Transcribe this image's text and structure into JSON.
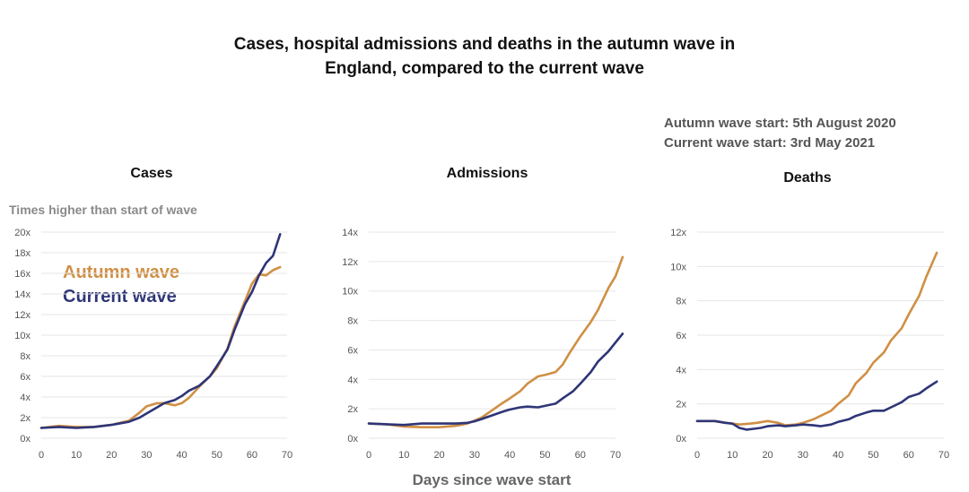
{
  "title": {
    "line1": "Cases, hospital admissions and deaths in the autumn wave in",
    "line2": "England, compared to the current wave"
  },
  "wave_info": {
    "autumn": "Autumn wave start: 5th August 2020",
    "current": "Current wave start: 3rd May 2021"
  },
  "y_description": "Times higher than start of wave",
  "x_description": "Days since wave start",
  "legend": {
    "autumn": "Autumn wave",
    "current": "Current wave"
  },
  "colors": {
    "autumn": "#D08F45",
    "current": "#2E3577",
    "grid": "#e6e6e6"
  },
  "chart_data": [
    {
      "type": "line",
      "title": "Cases",
      "xlabel": "Days since wave start",
      "ylabel": "Times higher than start of wave",
      "xlim": [
        0,
        70
      ],
      "ylim": [
        0,
        20
      ],
      "x_ticks": [
        0,
        10,
        20,
        30,
        40,
        50,
        60,
        70
      ],
      "y_ticks": [
        0,
        2,
        4,
        6,
        8,
        10,
        12,
        14,
        16,
        18,
        20
      ],
      "series": [
        {
          "name": "Autumn wave",
          "x": [
            0,
            5,
            10,
            15,
            20,
            25,
            28,
            30,
            33,
            35,
            38,
            40,
            42,
            45,
            48,
            50,
            53,
            55,
            58,
            60,
            62,
            64,
            66,
            68
          ],
          "y": [
            1,
            1.2,
            1.1,
            1.1,
            1.3,
            1.7,
            2.5,
            3.1,
            3.4,
            3.4,
            3.2,
            3.4,
            3.9,
            5,
            6,
            6.8,
            8.7,
            10.8,
            13.3,
            15,
            15.9,
            15.8,
            16.3,
            16.6
          ]
        },
        {
          "name": "Current wave",
          "x": [
            0,
            5,
            10,
            15,
            20,
            25,
            28,
            30,
            33,
            35,
            38,
            40,
            42,
            45,
            48,
            50,
            53,
            55,
            58,
            60,
            62,
            64,
            66,
            68
          ],
          "y": [
            1,
            1.1,
            1,
            1.1,
            1.3,
            1.6,
            2,
            2.4,
            3,
            3.4,
            3.7,
            4.1,
            4.6,
            5.1,
            6,
            7,
            8.6,
            10.5,
            13,
            14.2,
            15.8,
            17,
            17.7,
            19.8
          ]
        }
      ]
    },
    {
      "type": "line",
      "title": "Admissions",
      "xlabel": "Days since wave start",
      "ylabel": "",
      "xlim": [
        0,
        70
      ],
      "ylim": [
        0,
        14
      ],
      "x_ticks": [
        0,
        10,
        20,
        30,
        40,
        50,
        60,
        70
      ],
      "y_ticks": [
        0,
        2,
        4,
        6,
        8,
        10,
        12,
        14
      ],
      "series": [
        {
          "name": "Autumn wave",
          "x": [
            0,
            5,
            10,
            15,
            20,
            25,
            28,
            30,
            32,
            35,
            38,
            40,
            43,
            45,
            48,
            50,
            53,
            55,
            57,
            60,
            63,
            65,
            68,
            70,
            72
          ],
          "y": [
            1,
            0.95,
            0.8,
            0.75,
            0.75,
            0.85,
            1,
            1.2,
            1.4,
            1.9,
            2.4,
            2.7,
            3.2,
            3.7,
            4.2,
            4.3,
            4.5,
            5,
            5.8,
            6.9,
            7.9,
            8.7,
            10.2,
            11,
            12.3
          ]
        },
        {
          "name": "Current wave",
          "x": [
            0,
            5,
            10,
            15,
            20,
            25,
            28,
            30,
            32,
            35,
            38,
            40,
            43,
            45,
            48,
            50,
            53,
            55,
            58,
            60,
            63,
            65,
            68,
            70,
            72
          ],
          "y": [
            1,
            0.95,
            0.9,
            1,
            1,
            1,
            1.05,
            1.15,
            1.3,
            1.55,
            1.8,
            1.95,
            2.1,
            2.15,
            2.1,
            2.2,
            2.35,
            2.7,
            3.2,
            3.7,
            4.5,
            5.2,
            5.9,
            6.5,
            7.1
          ]
        }
      ]
    },
    {
      "type": "line",
      "title": "Deaths",
      "xlabel": "Days since wave start",
      "ylabel": "",
      "xlim": [
        0,
        70
      ],
      "ylim": [
        0,
        12
      ],
      "x_ticks": [
        0,
        10,
        20,
        30,
        40,
        50,
        60,
        70
      ],
      "y_ticks": [
        0,
        2,
        4,
        6,
        8,
        10,
        12
      ],
      "series": [
        {
          "name": "Autumn wave",
          "x": [
            0,
            3,
            5,
            8,
            10,
            12,
            15,
            17,
            20,
            23,
            25,
            28,
            30,
            33,
            35,
            38,
            40,
            43,
            45,
            48,
            50,
            53,
            55,
            58,
            60,
            63,
            65,
            68
          ],
          "y": [
            1,
            1,
            1,
            0.9,
            0.85,
            0.8,
            0.85,
            0.9,
            1,
            0.9,
            0.75,
            0.8,
            0.9,
            1.1,
            1.3,
            1.6,
            2,
            2.5,
            3.2,
            3.8,
            4.4,
            5,
            5.7,
            6.4,
            7.2,
            8.3,
            9.4,
            10.8
          ]
        },
        {
          "name": "Current wave",
          "x": [
            0,
            3,
            5,
            8,
            10,
            12,
            14,
            16,
            18,
            20,
            23,
            25,
            28,
            30,
            33,
            35,
            38,
            40,
            43,
            45,
            48,
            50,
            53,
            55,
            58,
            60,
            63,
            65,
            68
          ],
          "y": [
            1,
            1,
            1,
            0.9,
            0.85,
            0.6,
            0.5,
            0.55,
            0.6,
            0.7,
            0.75,
            0.7,
            0.75,
            0.8,
            0.75,
            0.7,
            0.8,
            0.95,
            1.1,
            1.3,
            1.5,
            1.6,
            1.6,
            1.8,
            2.1,
            2.4,
            2.6,
            2.9,
            3.3
          ]
        }
      ]
    }
  ]
}
